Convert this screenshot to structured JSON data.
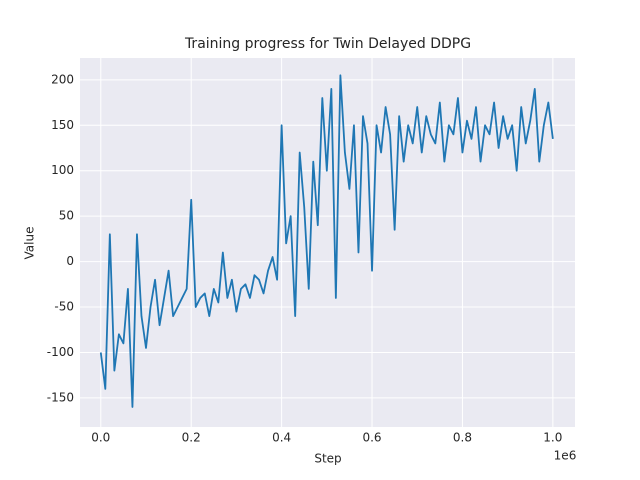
{
  "chart_data": {
    "type": "line",
    "title": "Training progress for Twin Delayed DDPG",
    "xlabel": "Step",
    "ylabel": "Value",
    "x_offset_label": "1e6",
    "color": "#1f77b4",
    "grid": true,
    "xlim": [
      -46000,
      1049000
    ],
    "ylim": [
      -182,
      224
    ],
    "xticks": [
      {
        "value": 0,
        "label": "0.0"
      },
      {
        "value": 200000,
        "label": "0.2"
      },
      {
        "value": 400000,
        "label": "0.4"
      },
      {
        "value": 600000,
        "label": "0.6"
      },
      {
        "value": 800000,
        "label": "0.8"
      },
      {
        "value": 1000000,
        "label": "1.0"
      }
    ],
    "yticks": [
      -150,
      -100,
      -50,
      0,
      50,
      100,
      150,
      200
    ],
    "x": [
      0,
      10000,
      20000,
      30000,
      40000,
      50000,
      60000,
      70000,
      80000,
      90000,
      100000,
      110000,
      120000,
      130000,
      140000,
      150000,
      160000,
      170000,
      180000,
      190000,
      200000,
      210000,
      220000,
      230000,
      240000,
      250000,
      260000,
      270000,
      280000,
      290000,
      300000,
      310000,
      320000,
      330000,
      340000,
      350000,
      360000,
      370000,
      380000,
      390000,
      400000,
      410000,
      420000,
      430000,
      440000,
      450000,
      460000,
      470000,
      480000,
      490000,
      500000,
      510000,
      520000,
      530000,
      540000,
      550000,
      560000,
      570000,
      580000,
      590000,
      600000,
      610000,
      620000,
      630000,
      640000,
      650000,
      660000,
      670000,
      680000,
      690000,
      700000,
      710000,
      720000,
      730000,
      740000,
      750000,
      760000,
      770000,
      780000,
      790000,
      800000,
      810000,
      820000,
      830000,
      840000,
      850000,
      860000,
      870000,
      880000,
      890000,
      900000,
      910000,
      920000,
      930000,
      940000,
      950000,
      960000,
      970000,
      980000,
      990000,
      1000000
    ],
    "values": [
      -100,
      -140,
      30,
      -120,
      -80,
      -90,
      -30,
      -160,
      30,
      -60,
      -95,
      -50,
      -20,
      -70,
      -40,
      -10,
      -60,
      -50,
      -40,
      -30,
      68,
      -50,
      -40,
      -35,
      -60,
      -30,
      -45,
      10,
      -40,
      -20,
      -55,
      -30,
      -25,
      -40,
      -15,
      -20,
      -35,
      -10,
      5,
      -20,
      150,
      20,
      50,
      -60,
      120,
      60,
      -30,
      110,
      40,
      180,
      100,
      190,
      -40,
      205,
      120,
      80,
      150,
      10,
      160,
      130,
      -10,
      150,
      120,
      170,
      140,
      35,
      160,
      110,
      150,
      130,
      170,
      120,
      160,
      140,
      130,
      175,
      110,
      150,
      140,
      180,
      120,
      155,
      135,
      170,
      110,
      150,
      140,
      175,
      125,
      160,
      135,
      150,
      100,
      170,
      130,
      155,
      190,
      110,
      150,
      175,
      135
    ]
  }
}
